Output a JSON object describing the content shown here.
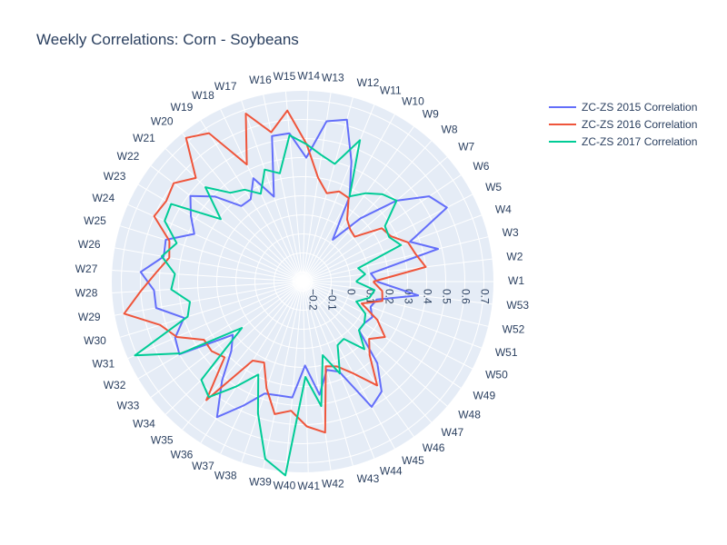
{
  "chart_data": {
    "type": "line",
    "polar": true,
    "title": "Weekly Correlations: Corn - Soybeans",
    "angular_categories": [
      "W1",
      "W2",
      "W3",
      "W4",
      "W5",
      "W6",
      "W7",
      "W8",
      "W9",
      "W10",
      "W11",
      "W12",
      "W13",
      "W14",
      "W15",
      "W16",
      "W17",
      "W18",
      "W19",
      "W20",
      "W21",
      "W22",
      "W23",
      "W24",
      "W25",
      "W26",
      "W27",
      "W28",
      "W29",
      "W30",
      "W31",
      "W32",
      "W33",
      "W34",
      "W35",
      "W36",
      "W37",
      "W38",
      "W39",
      "W40",
      "W41",
      "W42",
      "W43",
      "W44",
      "W45",
      "W46",
      "W47",
      "W48",
      "W49",
      "W50",
      "W51",
      "W52",
      "W53"
    ],
    "angular_direction": "counterclockwise",
    "angular_rotation_deg": 0,
    "radial_range": [
      -0.25,
      0.75
    ],
    "radial_ticks": [
      -0.2,
      -0.1,
      0,
      0.1,
      0.2,
      0.3,
      0.4,
      0.5,
      0.6,
      0.7
    ],
    "radial_tick_labels": [
      "−0.2",
      "−0.1",
      "0",
      "0.1",
      "0.2",
      "0.3",
      "0.4",
      "0.5",
      "0.6",
      "0.7"
    ],
    "grid": true,
    "legend_position": "top-right",
    "series": [
      {
        "name": "ZC-ZS 2015 Correlation",
        "color": "#636efa",
        "values": [
          0.14,
          0.11,
          0.48,
          0.35,
          0.6,
          0.55,
          0.4,
          0.2,
          0.02,
          0.26,
          0.43,
          0.63,
          0.6,
          0.4,
          0.53,
          0.53,
          0.22,
          0.35,
          0.26,
          0.26,
          0.39,
          0.49,
          0.43,
          0.37,
          0.5,
          0.49,
          0.6,
          0.53,
          0.53,
          0.4,
          0.48,
          0.5,
          0.21,
          0.27,
          0.42,
          0.59,
          0.47,
          0.37,
          0.36,
          0.36,
          0.19,
          0.35,
          0.23,
          0.26,
          0.5,
          0.46,
          0.33,
          0.14,
          0.14,
          0.16,
          0.13,
          0.15,
          0.36
        ]
      },
      {
        "name": "ZC-ZS 2016 Correlation",
        "color": "#ef553b",
        "values": [
          0.12,
          0.4,
          0.36,
          0.34,
          0.27,
          0.25,
          0.11,
          0.12,
          0.15,
          0.25,
          0.26,
          0.23,
          0.3,
          0.47,
          0.65,
          0.55,
          0.68,
          0.43,
          0.67,
          0.72,
          0.53,
          0.6,
          0.58,
          0.6,
          0.48,
          0.46,
          0.52,
          0.6,
          0.7,
          0.53,
          0.47,
          0.35,
          0.35,
          0.32,
          0.55,
          0.24,
          0.22,
          0.34,
          0.46,
          0.43,
          0.51,
          0.55,
          0.21,
          0.23,
          0.3,
          0.42,
          0.27,
          0.21,
          0.27,
          0.19,
          0.08,
          0.18,
          0.17
        ]
      },
      {
        "name": "ZC-ZS 2017 Correlation",
        "color": "#00cc96",
        "values": [
          0.03,
          0.08,
          0.05,
          0.3,
          0.26,
          0.27,
          0.4,
          0.37,
          0.32,
          0.26,
          0.55,
          0.39,
          0.42,
          0.47,
          0.52,
          0.33,
          0.37,
          0.26,
          0.32,
          0.35,
          0.46,
          0.29,
          0.55,
          0.54,
          0.44,
          0.5,
          0.42,
          0.44,
          0.35,
          0.38,
          0.71,
          0.49,
          0.15,
          0.49,
          0.53,
          0.4,
          0.29,
          0.48,
          0.7,
          0.77,
          0.25,
          0.41,
          0.15,
          0.27,
          0.13,
          0.12,
          0.23,
          0.14,
          0.14,
          0.12,
          0.05,
          0.11,
          0.13
        ]
      }
    ]
  }
}
